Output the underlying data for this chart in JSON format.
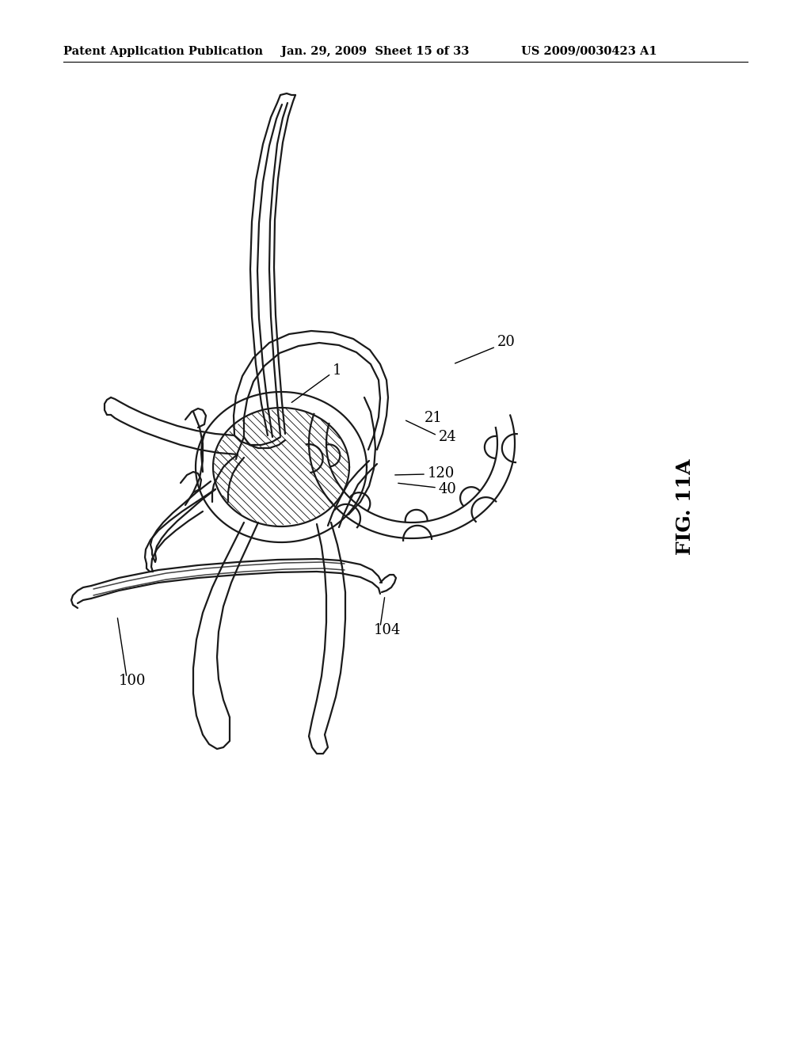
{
  "header_left": "Patent Application Publication",
  "header_center": "Jan. 29, 2009  Sheet 15 of 33",
  "header_right": "US 2009/0030423 A1",
  "fig_label": "FIG. 11A",
  "background_color": "#ffffff",
  "line_color": "#1a1a1a",
  "lw_main": 1.6,
  "lw_thin": 0.8,
  "label_fontsize": 13
}
